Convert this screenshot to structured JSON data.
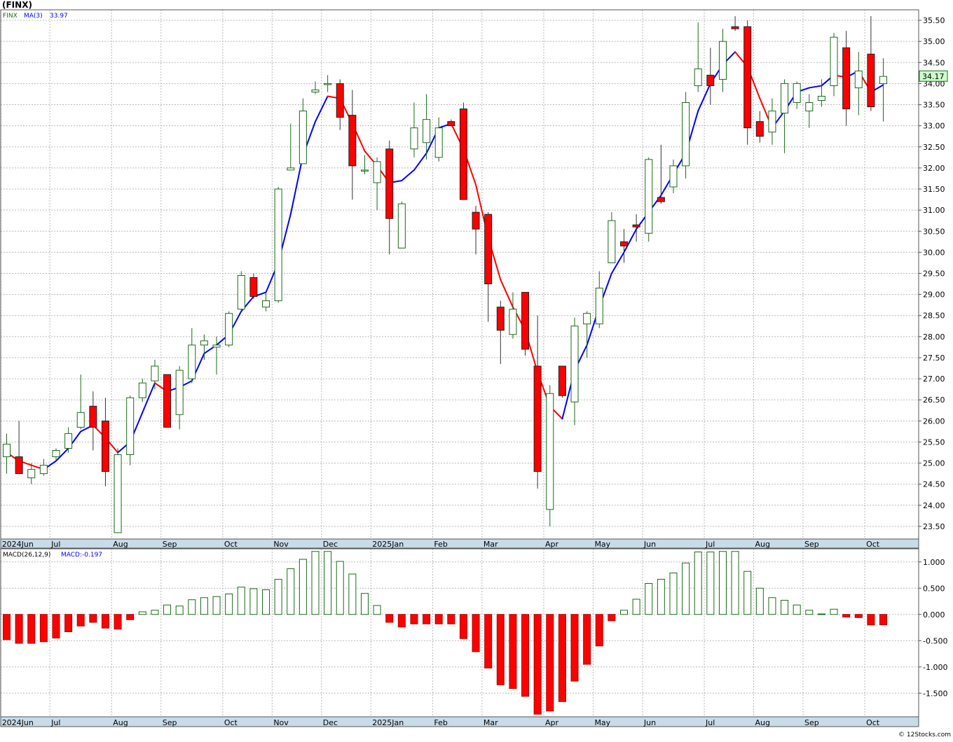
{
  "header": {
    "title": "(FINX)"
  },
  "price_legend": {
    "symbol": "FINX",
    "ma_label": "MA(3)",
    "ma_value": "33.97"
  },
  "last_price_label": "34.17",
  "macd_legend": {
    "params": "MACD(26,12,9)",
    "value_label": "MACD:-0.197"
  },
  "footer": {
    "credit": "© 12Stocks.com"
  },
  "colors": {
    "up": "#1a6b1a",
    "down": "#ff0000",
    "ma_up": "#0000ff",
    "ma_down": "#ff0000",
    "grid": "#b8b8b8",
    "axis_band": "#c8dbe8",
    "last_price_bg": "#ccffcc"
  },
  "chart_data": [
    {
      "type": "candlestick",
      "title": "(FINX)",
      "frequency": "weekly",
      "ylim": [
        23.2,
        35.75
      ],
      "y_ticks": [
        23.5,
        24.0,
        24.5,
        25.0,
        25.5,
        26.0,
        26.5,
        27.0,
        27.5,
        28.0,
        28.5,
        29.0,
        29.5,
        30.0,
        30.5,
        31.0,
        31.5,
        32.0,
        32.5,
        33.0,
        33.5,
        34.0,
        34.5,
        35.0,
        35.5
      ],
      "x_labels": [
        {
          "label": "2024Jun",
          "index": 0
        },
        {
          "label": "Jul",
          "index": 4
        },
        {
          "label": "Aug",
          "index": 9
        },
        {
          "label": "Sep",
          "index": 13
        },
        {
          "label": "Oct",
          "index": 18
        },
        {
          "label": "Nov",
          "index": 22
        },
        {
          "label": "Dec",
          "index": 26
        },
        {
          "label": "2025Jan",
          "index": 30
        },
        {
          "label": "Feb",
          "index": 35
        },
        {
          "label": "Mar",
          "index": 39
        },
        {
          "label": "Apr",
          "index": 44
        },
        {
          "label": "May",
          "index": 48
        },
        {
          "label": "Jun",
          "index": 52
        },
        {
          "label": "Jul",
          "index": 57
        },
        {
          "label": "Aug",
          "index": 61
        },
        {
          "label": "Sep",
          "index": 65
        },
        {
          "label": "Oct",
          "index": 70
        }
      ],
      "candles": [
        {
          "o": 25.15,
          "h": 25.7,
          "l": 24.75,
          "c": 25.45
        },
        {
          "o": 25.15,
          "h": 26.0,
          "l": 24.75,
          "c": 24.75
        },
        {
          "o": 24.65,
          "h": 25.0,
          "l": 24.5,
          "c": 24.85
        },
        {
          "o": 24.75,
          "h": 25.1,
          "l": 24.7,
          "c": 24.95
        },
        {
          "o": 25.15,
          "h": 25.35,
          "l": 25.05,
          "c": 25.3
        },
        {
          "o": 25.35,
          "h": 25.85,
          "l": 25.25,
          "c": 25.7
        },
        {
          "o": 25.85,
          "h": 27.1,
          "l": 25.8,
          "c": 26.2
        },
        {
          "o": 26.35,
          "h": 26.7,
          "l": 25.3,
          "c": 25.85
        },
        {
          "o": 26.0,
          "h": 26.55,
          "l": 24.45,
          "c": 24.8
        },
        {
          "o": 23.35,
          "h": 25.35,
          "l": 23.35,
          "c": 25.2
        },
        {
          "o": 25.2,
          "h": 26.6,
          "l": 24.95,
          "c": 26.55
        },
        {
          "o": 26.55,
          "h": 27.0,
          "l": 26.45,
          "c": 26.9
        },
        {
          "o": 26.95,
          "h": 27.45,
          "l": 26.75,
          "c": 27.3
        },
        {
          "o": 27.1,
          "h": 27.1,
          "l": 25.85,
          "c": 25.85
        },
        {
          "o": 26.15,
          "h": 27.3,
          "l": 25.8,
          "c": 27.2
        },
        {
          "o": 27.0,
          "h": 28.2,
          "l": 26.9,
          "c": 27.8
        },
        {
          "o": 27.8,
          "h": 28.05,
          "l": 27.45,
          "c": 27.9
        },
        {
          "o": 27.75,
          "h": 28.0,
          "l": 27.1,
          "c": 27.8
        },
        {
          "o": 27.8,
          "h": 28.6,
          "l": 27.75,
          "c": 28.55
        },
        {
          "o": 28.65,
          "h": 29.55,
          "l": 28.6,
          "c": 29.45
        },
        {
          "o": 29.4,
          "h": 29.5,
          "l": 28.9,
          "c": 28.95
        },
        {
          "o": 28.7,
          "h": 29.05,
          "l": 28.6,
          "c": 28.85
        },
        {
          "o": 28.85,
          "h": 31.55,
          "l": 28.8,
          "c": 31.5
        },
        {
          "o": 31.95,
          "h": 33.05,
          "l": 31.95,
          "c": 32.0
        },
        {
          "o": 32.1,
          "h": 33.65,
          "l": 32.1,
          "c": 33.35
        },
        {
          "o": 33.8,
          "h": 34.05,
          "l": 33.75,
          "c": 33.85
        },
        {
          "o": 34.0,
          "h": 34.2,
          "l": 33.8,
          "c": 34.0
        },
        {
          "o": 34.0,
          "h": 34.1,
          "l": 32.9,
          "c": 33.2
        },
        {
          "o": 33.25,
          "h": 33.85,
          "l": 31.25,
          "c": 32.05
        },
        {
          "o": 31.95,
          "h": 32.3,
          "l": 31.85,
          "c": 31.95
        },
        {
          "o": 31.65,
          "h": 32.25,
          "l": 31.0,
          "c": 32.15
        },
        {
          "o": 32.45,
          "h": 32.65,
          "l": 29.95,
          "c": 30.8
        },
        {
          "o": 30.1,
          "h": 31.2,
          "l": 30.1,
          "c": 31.15
        },
        {
          "o": 32.45,
          "h": 33.55,
          "l": 32.25,
          "c": 32.95
        },
        {
          "o": 32.6,
          "h": 33.75,
          "l": 32.2,
          "c": 33.15
        },
        {
          "o": 32.25,
          "h": 33.2,
          "l": 32.15,
          "c": 32.95
        },
        {
          "o": 33.1,
          "h": 33.15,
          "l": 33.0,
          "c": 33.0
        },
        {
          "o": 33.4,
          "h": 33.55,
          "l": 31.25,
          "c": 31.25
        },
        {
          "o": 30.95,
          "h": 31.1,
          "l": 29.95,
          "c": 30.55
        },
        {
          "o": 30.9,
          "h": 30.95,
          "l": 28.35,
          "c": 29.25
        },
        {
          "o": 28.7,
          "h": 28.85,
          "l": 27.35,
          "c": 28.15
        },
        {
          "o": 28.05,
          "h": 29.05,
          "l": 27.95,
          "c": 28.65
        },
        {
          "o": 29.05,
          "h": 29.05,
          "l": 27.55,
          "c": 27.7
        },
        {
          "o": 27.3,
          "h": 28.5,
          "l": 24.4,
          "c": 24.8
        },
        {
          "o": 23.9,
          "h": 26.85,
          "l": 23.5,
          "c": 26.65
        },
        {
          "o": 27.3,
          "h": 27.3,
          "l": 26.55,
          "c": 26.6
        },
        {
          "o": 26.45,
          "h": 28.45,
          "l": 25.9,
          "c": 28.25
        },
        {
          "o": 28.3,
          "h": 28.6,
          "l": 27.5,
          "c": 28.55
        },
        {
          "o": 28.3,
          "h": 29.55,
          "l": 28.2,
          "c": 29.15
        },
        {
          "o": 29.75,
          "h": 30.95,
          "l": 29.75,
          "c": 30.75
        },
        {
          "o": 30.25,
          "h": 30.55,
          "l": 29.75,
          "c": 30.15
        },
        {
          "o": 30.65,
          "h": 30.9,
          "l": 30.25,
          "c": 30.6
        },
        {
          "o": 30.45,
          "h": 32.25,
          "l": 30.25,
          "c": 32.2
        },
        {
          "o": 31.3,
          "h": 32.55,
          "l": 31.15,
          "c": 31.2
        },
        {
          "o": 31.55,
          "h": 32.2,
          "l": 31.4,
          "c": 32.05
        },
        {
          "o": 32.05,
          "h": 33.8,
          "l": 31.75,
          "c": 33.55
        },
        {
          "o": 33.95,
          "h": 35.45,
          "l": 33.8,
          "c": 34.35
        },
        {
          "o": 34.2,
          "h": 34.85,
          "l": 33.5,
          "c": 33.95
        },
        {
          "o": 34.1,
          "h": 35.3,
          "l": 33.8,
          "c": 35.0
        },
        {
          "o": 35.35,
          "h": 35.6,
          "l": 35.25,
          "c": 35.3
        },
        {
          "o": 35.35,
          "h": 35.5,
          "l": 32.55,
          "c": 32.95
        },
        {
          "o": 33.1,
          "h": 33.35,
          "l": 32.6,
          "c": 32.75
        },
        {
          "o": 32.85,
          "h": 33.65,
          "l": 32.55,
          "c": 33.35
        },
        {
          "o": 33.3,
          "h": 34.1,
          "l": 32.35,
          "c": 34.0
        },
        {
          "o": 33.55,
          "h": 34.05,
          "l": 33.4,
          "c": 34.0
        },
        {
          "o": 33.35,
          "h": 33.75,
          "l": 32.95,
          "c": 33.55
        },
        {
          "o": 33.6,
          "h": 34.1,
          "l": 33.45,
          "c": 33.7
        },
        {
          "o": 33.95,
          "h": 35.2,
          "l": 33.7,
          "c": 35.1
        },
        {
          "o": 34.85,
          "h": 35.25,
          "l": 33.0,
          "c": 33.4
        },
        {
          "o": 33.9,
          "h": 34.75,
          "l": 33.25,
          "c": 34.3
        },
        {
          "o": 34.7,
          "h": 35.6,
          "l": 33.35,
          "c": 33.45
        },
        {
          "o": 34.0,
          "h": 34.6,
          "l": 33.1,
          "c": 34.17
        }
      ],
      "ma": [
        25.25,
        25.05,
        24.95,
        24.85,
        25.05,
        25.35,
        25.75,
        25.9,
        25.6,
        25.25,
        25.5,
        26.2,
        26.9,
        26.7,
        26.8,
        26.95,
        27.6,
        27.8,
        28.05,
        28.6,
        28.95,
        29.05,
        29.75,
        30.9,
        32.3,
        33.1,
        33.7,
        33.65,
        33.05,
        32.4,
        32.05,
        31.65,
        31.7,
        31.95,
        32.35,
        32.95,
        33.05,
        32.45,
        31.6,
        30.35,
        29.35,
        28.7,
        28.15,
        27.15,
        26.35,
        26.05,
        27.2,
        27.8,
        28.7,
        29.5,
        30.0,
        30.55,
        30.95,
        31.35,
        31.85,
        32.35,
        33.35,
        34.0,
        34.45,
        34.75,
        34.4,
        33.65,
        32.95,
        33.35,
        33.8,
        33.9,
        33.95,
        34.2,
        34.15,
        34.3,
        33.8,
        33.97
      ]
    },
    {
      "type": "bar",
      "title": "MACD(26,12,9)",
      "ylim": [
        -1.95,
        1.25
      ],
      "y_ticks": [
        -1.5,
        -1.0,
        -0.5,
        0.0,
        0.5,
        1.0
      ],
      "y_tick_labels": [
        "-1.500",
        "-1.000",
        "-0.500",
        "0.000",
        "0.500",
        "1.000"
      ],
      "values": [
        -0.48,
        -0.55,
        -0.55,
        -0.52,
        -0.45,
        -0.33,
        -0.22,
        -0.15,
        -0.26,
        -0.28,
        -0.1,
        0.05,
        0.08,
        0.18,
        0.16,
        0.28,
        0.32,
        0.34,
        0.39,
        0.52,
        0.49,
        0.47,
        0.67,
        0.87,
        1.05,
        1.2,
        1.2,
        1.01,
        0.77,
        0.4,
        0.17,
        -0.15,
        -0.24,
        -0.18,
        -0.18,
        -0.18,
        -0.18,
        -0.46,
        -0.71,
        -1.02,
        -1.34,
        -1.41,
        -1.56,
        -1.9,
        -1.84,
        -1.66,
        -1.27,
        -0.95,
        -0.6,
        -0.12,
        0.08,
        0.29,
        0.59,
        0.67,
        0.79,
        0.98,
        1.19,
        1.19,
        1.2,
        1.2,
        0.82,
        0.5,
        0.32,
        0.27,
        0.18,
        0.08,
        0.01,
        0.1,
        -0.05,
        -0.06,
        -0.2,
        -0.197
      ]
    }
  ]
}
